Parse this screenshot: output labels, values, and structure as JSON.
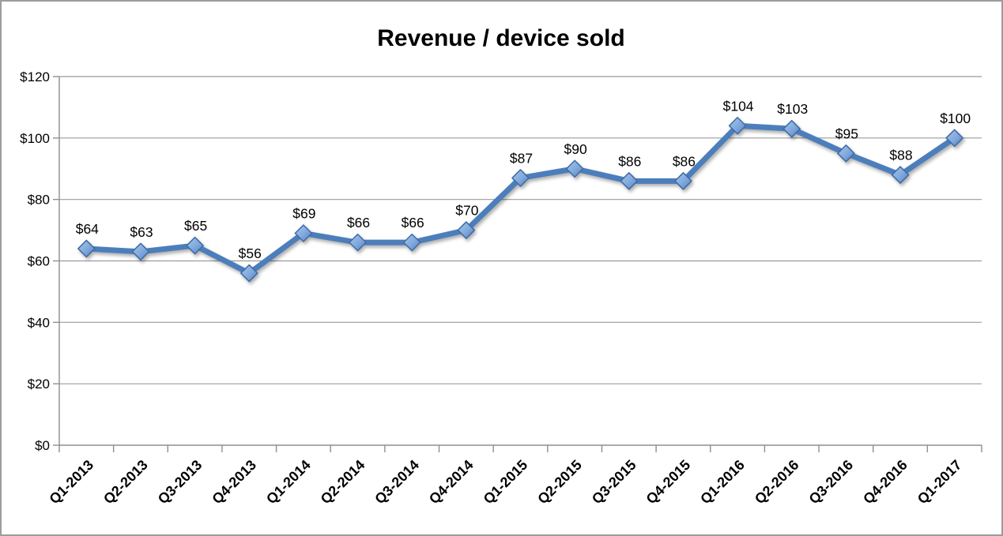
{
  "chart_data": {
    "type": "line",
    "title": "Revenue / device sold",
    "categories": [
      "Q1-2013",
      "Q2-2013",
      "Q3-2013",
      "Q4-2013",
      "Q1-2014",
      "Q2-2014",
      "Q3-2014",
      "Q4-2014",
      "Q1-2015",
      "Q2-2015",
      "Q3-2015",
      "Q4-2015",
      "Q1-2016",
      "Q2-2016",
      "Q3-2016",
      "Q4-2016",
      "Q1-2017"
    ],
    "series": [
      {
        "name": "Revenue / device sold",
        "values": [
          64,
          63,
          65,
          56,
          69,
          66,
          66,
          70,
          87,
          90,
          86,
          86,
          104,
          103,
          95,
          88,
          100
        ],
        "data_labels": [
          "$64",
          "$63",
          "$65",
          "$56",
          "$69",
          "$66",
          "$66",
          "$70",
          "$87",
          "$90",
          "$86",
          "$86",
          "$104",
          "$103",
          "$95",
          "$88",
          "$100"
        ]
      }
    ],
    "ylim": [
      0,
      120
    ],
    "y_ticks": [
      {
        "value": 0,
        "label": "$0"
      },
      {
        "value": 20,
        "label": "$20"
      },
      {
        "value": 40,
        "label": "$40"
      },
      {
        "value": 60,
        "label": "$60"
      },
      {
        "value": 80,
        "label": "$80"
      },
      {
        "value": 100,
        "label": "$100"
      },
      {
        "value": 120,
        "label": "$120"
      }
    ],
    "grid": "horizontal",
    "legend": "none",
    "marker": "diamond",
    "colors": {
      "line": "#4c7ebc",
      "marker_fill_light": "#a9c7ea",
      "marker_fill_mid": "#7fa8dc",
      "marker_fill_dark": "#527fbc",
      "marker_stroke": "#3e6ba5",
      "grid": "#9b9b9b",
      "axis": "#8f8f8f",
      "text": "#000000",
      "background": "#ffffff"
    }
  }
}
